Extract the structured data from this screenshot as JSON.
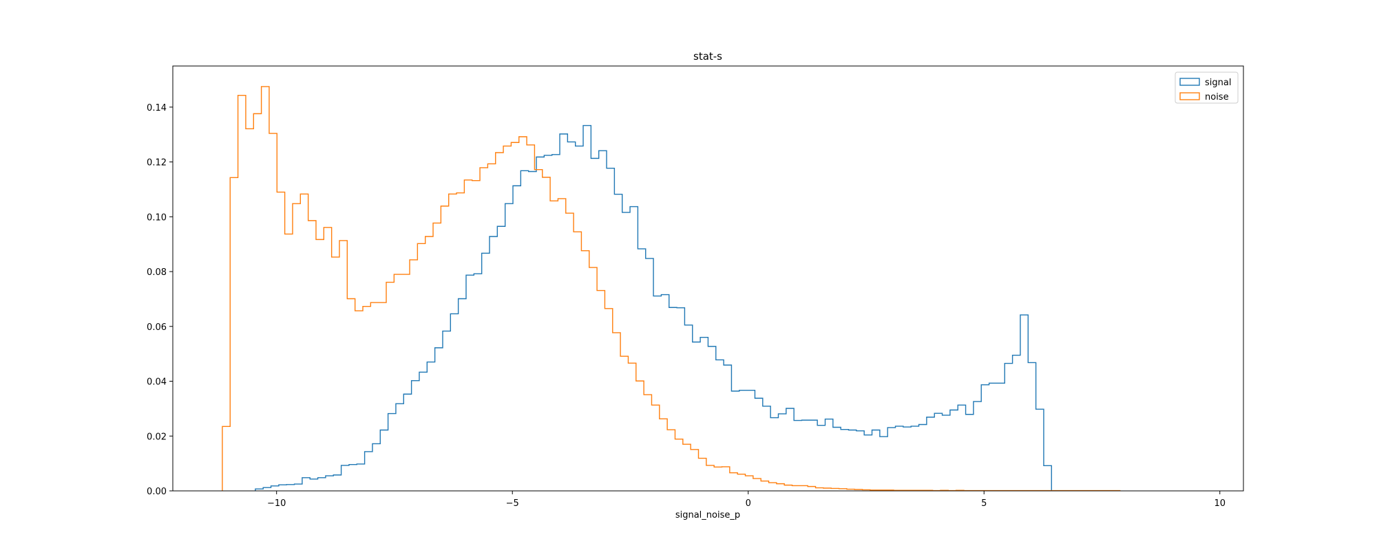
{
  "chart_data": {
    "type": "histogram",
    "title": "stat-s",
    "xlabel": "signal_noise_p",
    "ylabel": "",
    "xlim": [
      -12.2,
      10.5
    ],
    "ylim": [
      0.0,
      0.155
    ],
    "xticks": [
      -10,
      -5,
      0,
      5,
      10
    ],
    "xtick_labels": [
      "−10",
      "−5",
      "0",
      "5",
      "10"
    ],
    "yticks": [
      0.0,
      0.02,
      0.04,
      0.06,
      0.08,
      0.1,
      0.12,
      0.14
    ],
    "ytick_labels": [
      "0.00",
      "0.02",
      "0.04",
      "0.06",
      "0.08",
      "0.10",
      "0.12",
      "0.14"
    ],
    "grid": false,
    "legend_position": "top-right",
    "histtype": "step",
    "series": [
      {
        "name": "signal",
        "color": "#1f77b4",
        "bin_start": -10.45,
        "bin_width": 0.1655,
        "values": [
          0.0007,
          0.0012,
          0.0018,
          0.0022,
          0.0023,
          0.0025,
          0.0048,
          0.0043,
          0.0048,
          0.0055,
          0.0058,
          0.0093,
          0.0096,
          0.0098,
          0.0143,
          0.0172,
          0.0222,
          0.0282,
          0.0318,
          0.0353,
          0.0402,
          0.0433,
          0.047,
          0.0522,
          0.0583,
          0.0646,
          0.0701,
          0.0787,
          0.0792,
          0.0867,
          0.0928,
          0.0965,
          0.1048,
          0.1113,
          0.1168,
          0.1165,
          0.1218,
          0.1224,
          0.1227,
          0.1302,
          0.1273,
          0.1258,
          0.1333,
          0.1213,
          0.1241,
          0.1177,
          0.1082,
          0.1016,
          0.1037,
          0.0883,
          0.0848,
          0.0711,
          0.0716,
          0.0669,
          0.0668,
          0.0605,
          0.0543,
          0.056,
          0.0527,
          0.0478,
          0.0459,
          0.0364,
          0.0367,
          0.0367,
          0.0338,
          0.0309,
          0.0267,
          0.0281,
          0.0301,
          0.0257,
          0.0258,
          0.0258,
          0.0239,
          0.0262,
          0.0232,
          0.0224,
          0.0222,
          0.0219,
          0.0204,
          0.0222,
          0.0198,
          0.0231,
          0.0236,
          0.0233,
          0.0236,
          0.0242,
          0.0269,
          0.0283,
          0.0276,
          0.0295,
          0.0313,
          0.0279,
          0.0326,
          0.0387,
          0.0393,
          0.0393,
          0.0465,
          0.0495,
          0.0642,
          0.0468,
          0.0298,
          0.0092
        ]
      },
      {
        "name": "noise",
        "color": "#ff7f0e",
        "bin_start": -11.15,
        "bin_width": 0.1655,
        "values": [
          0.0235,
          0.1143,
          0.1443,
          0.1321,
          0.1376,
          0.1475,
          0.1304,
          0.109,
          0.0937,
          0.1048,
          0.1083,
          0.0986,
          0.0917,
          0.0961,
          0.0853,
          0.0913,
          0.0701,
          0.0657,
          0.0673,
          0.0687,
          0.0687,
          0.0761,
          0.079,
          0.079,
          0.0843,
          0.0902,
          0.0928,
          0.0977,
          0.1039,
          0.1083,
          0.1087,
          0.1134,
          0.1132,
          0.1179,
          0.1193,
          0.1234,
          0.1258,
          0.1271,
          0.1292,
          0.1262,
          0.1172,
          0.1144,
          0.1058,
          0.1066,
          0.1013,
          0.0945,
          0.0876,
          0.0815,
          0.0731,
          0.0665,
          0.0577,
          0.0491,
          0.0466,
          0.0401,
          0.0351,
          0.0313,
          0.0263,
          0.0223,
          0.0189,
          0.017,
          0.0151,
          0.0119,
          0.0093,
          0.0087,
          0.0088,
          0.0066,
          0.0061,
          0.0055,
          0.0045,
          0.0036,
          0.003,
          0.0026,
          0.0021,
          0.0019,
          0.0019,
          0.0016,
          0.0011,
          0.001,
          0.0009,
          0.0008,
          0.0006,
          0.0005,
          0.0004,
          0.0003,
          0.0003,
          0.0003,
          0.0002,
          0.0002,
          0.0002,
          0.0002,
          0.0002,
          0.0001,
          0.0002,
          0.0001,
          0.0002,
          0.0001,
          0.0001,
          0.0001,
          0.0001,
          0.0001,
          0.0001,
          0.0001,
          0.0001,
          0.0001,
          0.0001,
          0.0001,
          0.0001,
          0.0001,
          0.0001,
          0.0001,
          0.0001,
          0.0001,
          0.0001,
          0.0001,
          0.0001
        ]
      }
    ]
  }
}
